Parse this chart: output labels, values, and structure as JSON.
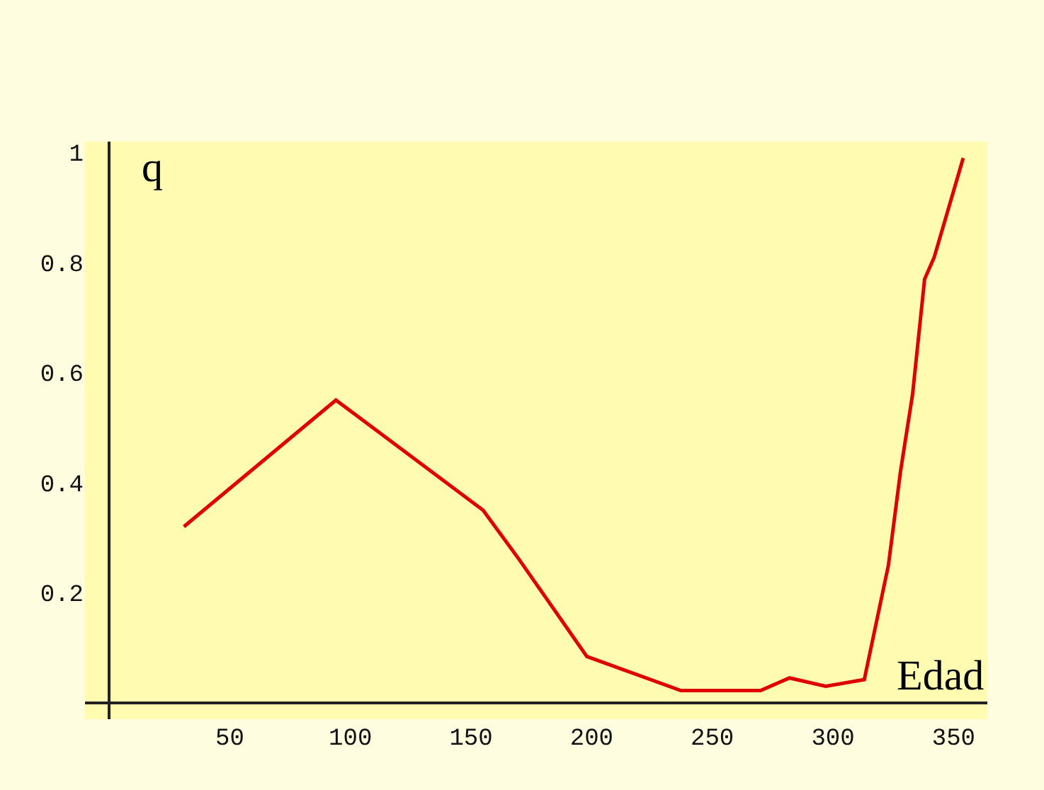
{
  "chart_data": {
    "type": "line",
    "xlabel": "Edad",
    "ylabel": "q",
    "x": [
      31,
      94,
      155,
      170,
      198,
      237,
      270,
      282,
      297,
      313,
      323,
      328,
      333,
      338,
      342,
      354
    ],
    "series": [
      {
        "color": "#e00000",
        "values": [
          0.32,
          0.55,
          0.35,
          0.26,
          0.084,
          0.022,
          0.022,
          0.045,
          0.03,
          0.042,
          0.25,
          0.42,
          0.56,
          0.77,
          0.81,
          0.99
        ]
      }
    ],
    "xlim": [
      -10,
      364
    ],
    "ylim": [
      -0.03,
      1.02
    ],
    "xticks": [
      50,
      100,
      150,
      200,
      250,
      300,
      350
    ],
    "yticks": [
      0.2,
      0.4,
      0.6,
      0.8,
      1
    ],
    "grid": false,
    "marker": "none",
    "line_style": "solid"
  }
}
